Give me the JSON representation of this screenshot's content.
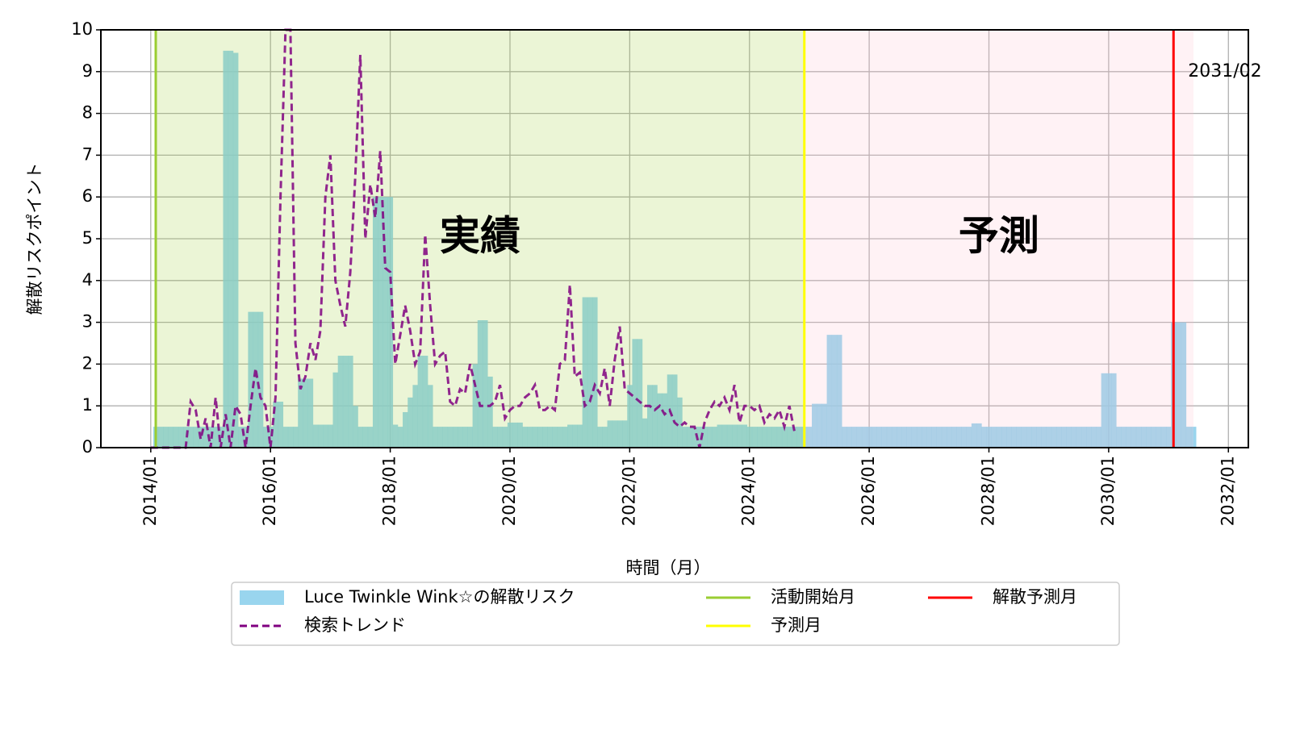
{
  "chart_data": {
    "type": "bar",
    "xlabel": "時間（月）",
    "ylabel": "解散リスクポイント",
    "xlim": [
      "2013/03",
      "2032/05"
    ],
    "xticks": [
      "2014/01",
      "2016/01",
      "2018/01",
      "2020/01",
      "2022/01",
      "2024/01",
      "2026/01",
      "2028/01",
      "2030/01",
      "2032/01"
    ],
    "ylim": [
      0,
      10
    ],
    "yticks": [
      0,
      1,
      2,
      3,
      4,
      5,
      6,
      7,
      8,
      9,
      10
    ],
    "grid": true,
    "legend": "below",
    "series": [
      {
        "name": "Luce Twinkle Wink☆の解散リスク",
        "color": "#87ceeb",
        "type": "bar",
        "x": [
          "2014/02",
          "2014/03",
          "2014/04",
          "2014/05",
          "2014/06",
          "2014/07",
          "2014/08",
          "2014/09",
          "2014/10",
          "2014/11",
          "2014/12",
          "2015/01",
          "2015/02",
          "2015/03",
          "2015/04",
          "2015/05",
          "2015/06",
          "2015/07",
          "2015/08",
          "2015/09",
          "2015/10",
          "2015/11",
          "2015/12",
          "2016/01",
          "2016/02",
          "2016/03",
          "2016/04",
          "2016/05",
          "2016/06",
          "2016/07",
          "2016/08",
          "2016/09",
          "2016/10",
          "2016/11",
          "2016/12",
          "2017/01",
          "2017/02",
          "2017/03",
          "2017/04",
          "2017/05",
          "2017/06",
          "2017/07",
          "2017/08",
          "2017/09",
          "2017/10",
          "2017/11",
          "2017/12",
          "2018/01",
          "2018/02",
          "2018/03",
          "2018/04",
          "2018/05",
          "2018/06",
          "2018/07",
          "2018/08",
          "2018/09",
          "2018/10",
          "2018/11",
          "2018/12",
          "2019/01",
          "2019/02",
          "2019/03",
          "2019/04",
          "2019/05",
          "2019/06",
          "2019/07",
          "2019/08",
          "2019/09",
          "2019/10",
          "2019/11",
          "2019/12",
          "2020/01",
          "2020/02",
          "2020/03",
          "2020/04",
          "2020/05",
          "2020/06",
          "2020/07",
          "2020/08",
          "2020/09",
          "2020/10",
          "2020/11",
          "2020/12",
          "2021/01",
          "2021/02",
          "2021/03",
          "2021/04",
          "2021/05",
          "2021/06",
          "2021/07",
          "2021/08",
          "2021/09",
          "2021/10",
          "2021/11",
          "2021/12",
          "2022/01",
          "2022/02",
          "2022/03",
          "2022/04",
          "2022/05",
          "2022/06",
          "2022/07",
          "2022/08",
          "2022/09",
          "2022/10",
          "2022/11",
          "2022/12",
          "2023/01",
          "2023/02",
          "2023/03",
          "2023/04",
          "2023/05",
          "2023/06",
          "2023/07",
          "2023/08",
          "2023/09",
          "2023/10",
          "2023/11",
          "2023/12",
          "2024/01",
          "2024/02",
          "2024/03",
          "2024/04",
          "2024/05",
          "2024/06",
          "2024/07",
          "2024/08",
          "2024/09",
          "2024/10",
          "2024/11",
          "2024/12",
          "2025/01",
          "2025/02",
          "2025/03",
          "2025/04",
          "2025/05",
          "2025/06",
          "2025/07",
          "2025/08",
          "2025/09",
          "2025/10",
          "2025/11",
          "2025/12",
          "2026/01",
          "2026/02",
          "2026/03",
          "2026/04",
          "2026/05",
          "2026/06",
          "2026/07",
          "2026/08",
          "2026/09",
          "2026/10",
          "2026/11",
          "2026/12",
          "2027/01",
          "2027/02",
          "2027/03",
          "2027/04",
          "2027/05",
          "2027/06",
          "2027/07",
          "2027/08",
          "2027/09",
          "2027/10",
          "2027/11",
          "2027/12",
          "2028/01",
          "2028/02",
          "2028/03",
          "2028/04",
          "2028/05",
          "2028/06",
          "2028/07",
          "2028/08",
          "2028/09",
          "2028/10",
          "2028/11",
          "2028/12",
          "2029/01",
          "2029/02",
          "2029/03",
          "2029/04",
          "2029/05",
          "2029/06",
          "2029/07",
          "2029/08",
          "2029/09",
          "2029/10",
          "2029/11",
          "2029/12",
          "2030/01",
          "2030/02",
          "2030/03",
          "2030/04",
          "2030/05",
          "2030/06",
          "2030/07",
          "2030/08",
          "2030/09",
          "2030/10",
          "2030/11",
          "2030/12",
          "2031/01",
          "2031/02",
          "2031/03",
          "2031/04",
          "2031/05",
          "2031/06"
        ],
        "values": [
          0.5,
          0.5,
          0.5,
          0.5,
          0.5,
          0.5,
          0.5,
          0.5,
          0.5,
          0.5,
          0.5,
          0.5,
          0.5,
          0.5,
          9.5,
          9.5,
          9.45,
          0.5,
          0.5,
          3.25,
          3.25,
          3.25,
          0.5,
          0.5,
          1.1,
          1.1,
          0.5,
          0.5,
          0.5,
          1.65,
          1.65,
          1.65,
          0.55,
          0.55,
          0.55,
          0.55,
          1.8,
          2.2,
          2.2,
          2.2,
          1.0,
          0.5,
          0.5,
          0.5,
          6.0,
          6.0,
          6.0,
          6.0,
          0.55,
          0.5,
          0.85,
          1.2,
          1.5,
          2.2,
          2.2,
          1.5,
          0.5,
          0.5,
          0.5,
          0.5,
          0.5,
          0.5,
          0.5,
          0.5,
          2.0,
          3.05,
          3.05,
          1.7,
          0.5,
          0.5,
          0.5,
          0.6,
          0.6,
          0.6,
          0.5,
          0.5,
          0.5,
          0.5,
          0.5,
          0.5,
          0.5,
          0.5,
          0.5,
          0.55,
          0.55,
          0.55,
          3.6,
          3.6,
          3.6,
          0.5,
          0.5,
          0.65,
          0.65,
          0.65,
          0.65,
          1.5,
          2.6,
          2.6,
          0.7,
          1.5,
          1.5,
          1.3,
          1.3,
          1.75,
          1.75,
          1.2,
          0.5,
          0.5,
          0.5,
          0.5,
          0.5,
          0.5,
          0.5,
          0.55,
          0.55,
          0.55,
          0.55,
          0.55,
          0.55,
          0.5,
          0.5,
          0.5,
          0.5,
          0.5,
          0.5,
          0.5,
          0.5,
          0.5,
          0.5,
          0.5,
          0.5,
          0.5,
          1.05,
          1.05,
          1.05,
          2.7,
          2.7,
          2.7,
          0.5,
          0.5,
          0.5,
          0.5,
          0.5,
          0.5,
          0.5,
          0.5,
          0.5,
          0.5,
          0.5,
          0.5,
          0.5,
          0.5,
          0.5,
          0.5,
          0.5,
          0.5,
          0.5,
          0.5,
          0.5,
          0.5,
          0.5,
          0.5,
          0.5,
          0.5,
          0.58,
          0.58,
          0.5,
          0.5,
          0.5,
          0.5,
          0.5,
          0.5,
          0.5,
          0.5,
          0.5,
          0.5,
          0.5,
          0.5,
          0.5,
          0.5,
          0.5,
          0.5,
          0.5,
          0.5,
          0.5,
          0.5,
          0.5,
          0.5,
          0.5,
          0.5,
          1.78,
          1.78,
          1.78,
          0.5,
          0.5,
          0.5,
          0.5,
          0.5,
          0.5,
          0.5,
          0.5,
          0.5,
          0.5,
          0.5,
          3.0,
          3.0,
          3.0,
          0.5,
          0.5
        ]
      },
      {
        "name": "検索トレンド",
        "color": "#800080",
        "type": "line",
        "style": "dashed",
        "x": [
          "2014/01",
          "2014/02",
          "2014/03",
          "2014/04",
          "2014/05",
          "2014/06",
          "2014/07",
          "2014/08",
          "2014/09",
          "2014/10",
          "2014/11",
          "2014/12",
          "2015/01",
          "2015/02",
          "2015/03",
          "2015/04",
          "2015/05",
          "2015/06",
          "2015/07",
          "2015/08",
          "2015/09",
          "2015/10",
          "2015/11",
          "2015/12",
          "2016/01",
          "2016/02",
          "2016/03",
          "2016/04",
          "2016/05",
          "2016/06",
          "2016/07",
          "2016/08",
          "2016/09",
          "2016/10",
          "2016/11",
          "2016/12",
          "2017/01",
          "2017/02",
          "2017/03",
          "2017/04",
          "2017/05",
          "2017/06",
          "2017/07",
          "2017/08",
          "2017/09",
          "2017/10",
          "2017/11",
          "2017/12",
          "2018/01",
          "2018/02",
          "2018/03",
          "2018/04",
          "2018/05",
          "2018/06",
          "2018/07",
          "2018/08",
          "2018/09",
          "2018/10",
          "2018/11",
          "2018/12",
          "2019/01",
          "2019/02",
          "2019/03",
          "2019/04",
          "2019/05",
          "2019/06",
          "2019/07",
          "2019/08",
          "2019/09",
          "2019/10",
          "2019/11",
          "2019/12",
          "2020/01",
          "2020/02",
          "2020/03",
          "2020/04",
          "2020/05",
          "2020/06",
          "2020/07",
          "2020/08",
          "2020/09",
          "2020/10",
          "2020/11",
          "2020/12",
          "2021/01",
          "2021/02",
          "2021/03",
          "2021/04",
          "2021/05",
          "2021/06",
          "2021/07",
          "2021/08",
          "2021/09",
          "2021/10",
          "2021/11",
          "2021/12",
          "2022/01",
          "2022/02",
          "2022/03",
          "2022/04",
          "2022/05",
          "2022/06",
          "2022/07",
          "2022/08",
          "2022/09",
          "2022/10",
          "2022/11",
          "2022/12",
          "2023/01",
          "2023/02",
          "2023/03",
          "2023/04",
          "2023/05",
          "2023/06",
          "2023/07",
          "2023/08",
          "2023/09",
          "2023/10",
          "2023/11",
          "2023/12",
          "2024/01",
          "2024/02",
          "2024/03",
          "2024/04",
          "2024/05",
          "2024/06",
          "2024/07",
          "2024/08",
          "2024/09",
          "2024/10"
        ],
        "values": [
          0,
          0,
          0,
          0,
          0,
          0,
          0,
          0,
          1.1,
          0.9,
          0.2,
          0.7,
          0,
          1.2,
          0,
          0.8,
          0,
          1.0,
          0.8,
          0,
          1.0,
          1.9,
          1.2,
          1.0,
          0,
          1.2,
          6,
          10,
          10,
          2.5,
          1.4,
          1.7,
          2.5,
          2.1,
          2.8,
          6,
          7,
          4,
          3.4,
          2.9,
          4.2,
          6.5,
          9.4,
          5,
          6.3,
          5.5,
          7.1,
          4.3,
          4.2,
          2.0,
          2.7,
          3.4,
          2.8,
          2.0,
          2.3,
          5.1,
          3.4,
          2.0,
          2.2,
          2.3,
          1.1,
          1.0,
          1.4,
          1.3,
          2.0,
          1.5,
          1.0,
          1.0,
          1.0,
          1.1,
          1.5,
          0.7,
          0.9,
          1.0,
          1.0,
          1.2,
          1.3,
          1.5,
          0.9,
          0.9,
          1.0,
          0.9,
          2.0,
          2.1,
          3.9,
          1.7,
          1.8,
          1.0,
          1.1,
          1.5,
          1.3,
          1.9,
          1.0,
          2.1,
          2.9,
          1.4,
          1.3,
          1.2,
          1.1,
          1.0,
          1.0,
          0.9,
          1.0,
          0.8,
          0.9,
          0.6,
          0.5,
          0.6,
          0.5,
          0.5,
          0,
          0.6,
          0.9,
          1.1,
          1.0,
          1.2,
          0.9,
          1.5,
          0.6,
          1.0,
          1.0,
          0.9,
          1.0,
          0.6,
          0.8,
          0.7,
          0.9,
          0.5,
          1.0,
          0.4
        ]
      }
    ],
    "vlines": [
      {
        "name": "活動開始月",
        "color": "#9acd32",
        "x": "2014/02"
      },
      {
        "name": "予測月",
        "color": "#ffff00",
        "x": "2024/12"
      },
      {
        "name": "解散予測月",
        "color": "#ff0000",
        "x": "2031/02"
      }
    ],
    "spans": [
      {
        "color": "#9acd32",
        "from": "2014/02",
        "to": "2024/12"
      },
      {
        "color": "#ffc0cb",
        "from": "2024/12",
        "to": "2031/06"
      }
    ],
    "annotations": [
      {
        "text": "実績",
        "color": "#3a9a1e",
        "x": "2019/07",
        "y": 5
      },
      {
        "text": "予測",
        "color": "#ff0000",
        "x": "2028/03",
        "y": 5
      }
    ]
  }
}
